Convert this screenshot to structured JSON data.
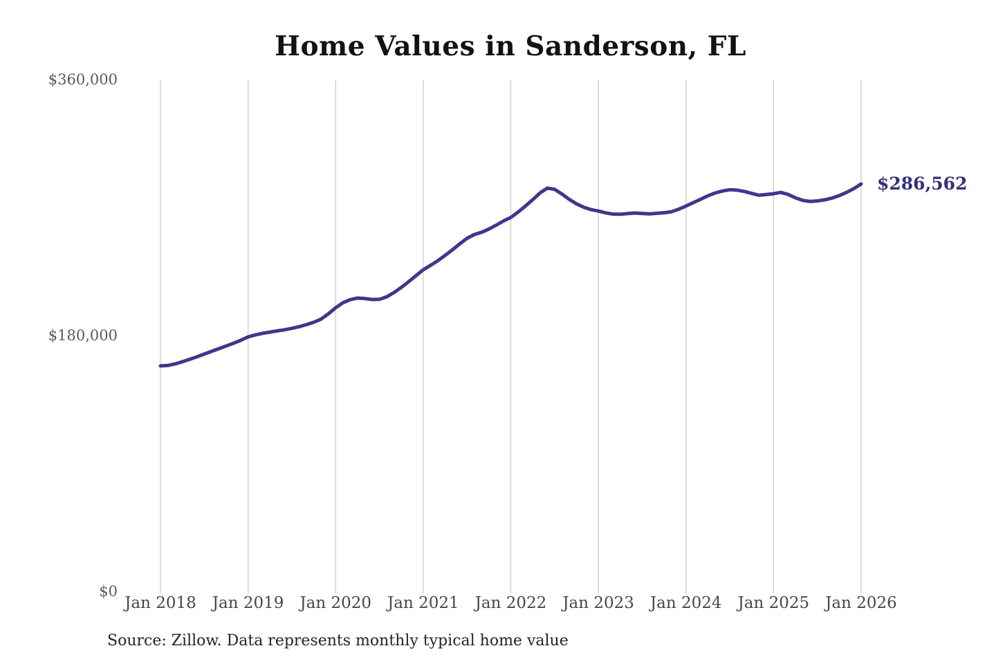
{
  "chart_data": {
    "type": "line",
    "title": "Home Values in Sanderson, FL",
    "xlabel": "",
    "ylabel": "",
    "ylim": [
      0,
      360000
    ],
    "grid": "vertical-only",
    "legend_position": "none",
    "x_tick_labels": [
      "Jan 2018",
      "Jan 2019",
      "Jan 2020",
      "Jan 2021",
      "Jan 2022",
      "Jan 2023",
      "Jan 2024",
      "Jan 2025",
      "Jan 2026"
    ],
    "y_ticks": [
      {
        "value": 0,
        "label": "$0"
      },
      {
        "value": 180000,
        "label": "$180,000"
      },
      {
        "value": 360000,
        "label": "$360,000"
      }
    ],
    "end_annotation": {
      "label": "$286,562",
      "value": 286562
    },
    "source_note": "Source: Zillow. Data represents monthly typical home value",
    "series": [
      {
        "name": "Monthly typical home value",
        "interval": "monthly",
        "start_month": "2018-01",
        "end_month": "2026-01",
        "values": [
          158600,
          158900,
          160000,
          161500,
          163200,
          165000,
          166900,
          168800,
          170700,
          172600,
          174500,
          176600,
          179000,
          180400,
          181500,
          182400,
          183200,
          184000,
          185000,
          186200,
          187600,
          189300,
          191500,
          195200,
          199500,
          203000,
          205200,
          206300,
          206000,
          205300,
          205400,
          207200,
          210200,
          213800,
          217800,
          222000,
          226200,
          229300,
          232600,
          236300,
          240300,
          244400,
          248300,
          251000,
          252600,
          254800,
          257600,
          260500,
          263000,
          266800,
          271000,
          275500,
          280200,
          283600,
          282800,
          279500,
          275800,
          272600,
          270200,
          268500,
          267500,
          266200,
          265400,
          265300,
          265700,
          266100,
          265800,
          265500,
          265900,
          266300,
          267000,
          268800,
          271000,
          273400,
          275800,
          278200,
          280200,
          281600,
          282500,
          282200,
          281300,
          279900,
          278600,
          279100,
          279700,
          280600,
          279200,
          276800,
          275000,
          274300,
          274600,
          275400,
          276600,
          278300,
          280600,
          283300,
          286562
        ]
      }
    ]
  },
  "colors": {
    "line": "#3e378c",
    "annotation_text": "#322e78",
    "gridline": "#cccccc",
    "y_tick_text": "#5a5a5a",
    "x_tick_text": "#474747",
    "title_text": "#121212",
    "source_text": "#232323",
    "background": "#ffffff"
  }
}
